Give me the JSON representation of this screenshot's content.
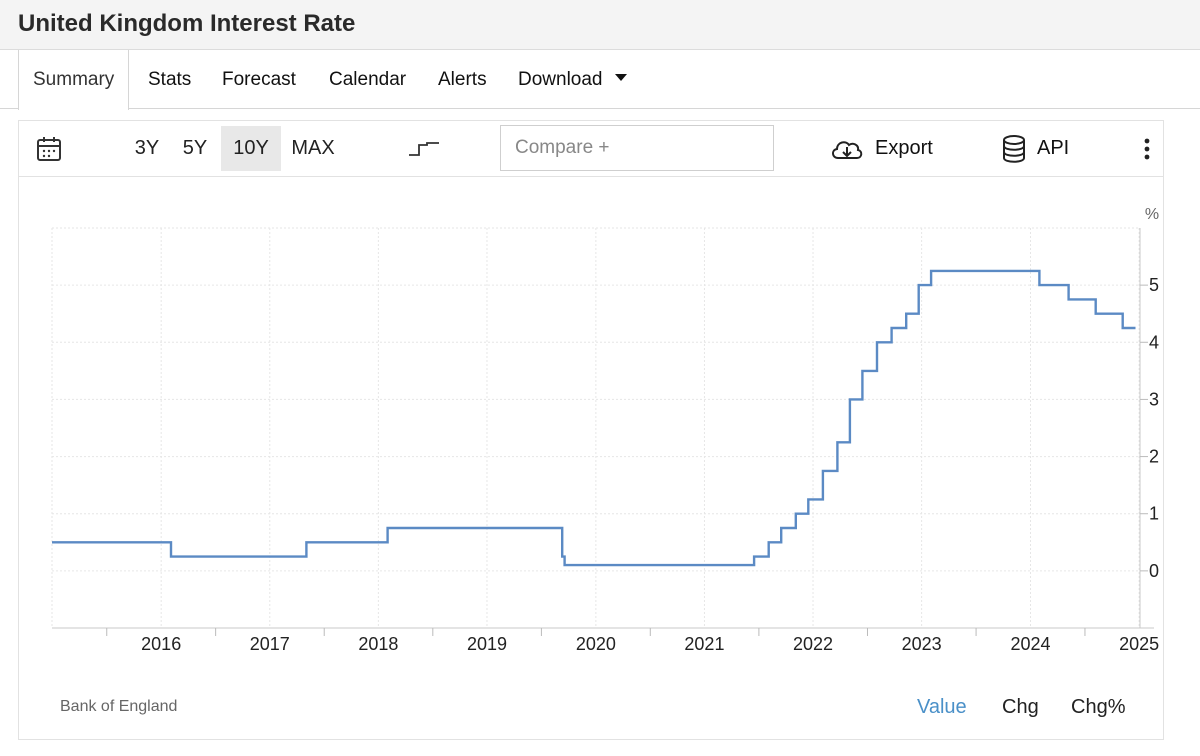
{
  "title": "United Kingdom Interest Rate",
  "tabs": [
    {
      "label": "Summary"
    },
    {
      "label": "Stats"
    },
    {
      "label": "Forecast"
    },
    {
      "label": "Calendar"
    },
    {
      "label": "Alerts"
    },
    {
      "label": "Download"
    }
  ],
  "toolbar": {
    "ranges": [
      "3Y",
      "5Y",
      "10Y",
      "MAX"
    ],
    "active_range": "10Y",
    "compare_placeholder": "Compare +",
    "export_label": "Export",
    "api_label": "API"
  },
  "source": "Bank of England",
  "modes": [
    "Value",
    "Chg",
    "Chg%"
  ],
  "active_mode": "Value",
  "colors": {
    "line": "#5b8ac4",
    "accent": "#4a90c8",
    "grid": "#e6e6e6"
  },
  "chart_data": {
    "type": "line",
    "step": true,
    "title": "",
    "xlabel": "",
    "ylabel": "%",
    "xlim": [
      "2015-07-01",
      "2025-07-05"
    ],
    "ylim": [
      -1,
      6
    ],
    "y_ticks": [
      0,
      1,
      2,
      3,
      4,
      5
    ],
    "x_ticks": [
      "2016",
      "2017",
      "2018",
      "2019",
      "2020",
      "2021",
      "2022",
      "2023",
      "2024",
      "2025"
    ],
    "grid": true,
    "series": [
      {
        "name": "",
        "points": [
          {
            "date": "2015-07-01",
            "value": 0.5
          },
          {
            "date": "2016-08-04",
            "value": 0.25
          },
          {
            "date": "2017-11-02",
            "value": 0.5
          },
          {
            "date": "2018-08-02",
            "value": 0.75
          },
          {
            "date": "2020-03-11",
            "value": 0.25
          },
          {
            "date": "2020-03-19",
            "value": 0.1
          },
          {
            "date": "2021-12-16",
            "value": 0.25
          },
          {
            "date": "2022-02-03",
            "value": 0.5
          },
          {
            "date": "2022-03-17",
            "value": 0.75
          },
          {
            "date": "2022-05-05",
            "value": 1.0
          },
          {
            "date": "2022-06-16",
            "value": 1.25
          },
          {
            "date": "2022-08-04",
            "value": 1.75
          },
          {
            "date": "2022-09-22",
            "value": 2.25
          },
          {
            "date": "2022-11-03",
            "value": 3.0
          },
          {
            "date": "2022-12-15",
            "value": 3.5
          },
          {
            "date": "2023-02-02",
            "value": 4.0
          },
          {
            "date": "2023-03-23",
            "value": 4.25
          },
          {
            "date": "2023-05-11",
            "value": 4.5
          },
          {
            "date": "2023-06-22",
            "value": 5.0
          },
          {
            "date": "2023-08-03",
            "value": 5.25
          },
          {
            "date": "2024-08-01",
            "value": 5.0
          },
          {
            "date": "2024-11-07",
            "value": 4.75
          },
          {
            "date": "2025-02-06",
            "value": 4.5
          },
          {
            "date": "2025-05-08",
            "value": 4.25
          },
          {
            "date": "2025-06-20",
            "value": 4.25
          }
        ]
      }
    ]
  }
}
